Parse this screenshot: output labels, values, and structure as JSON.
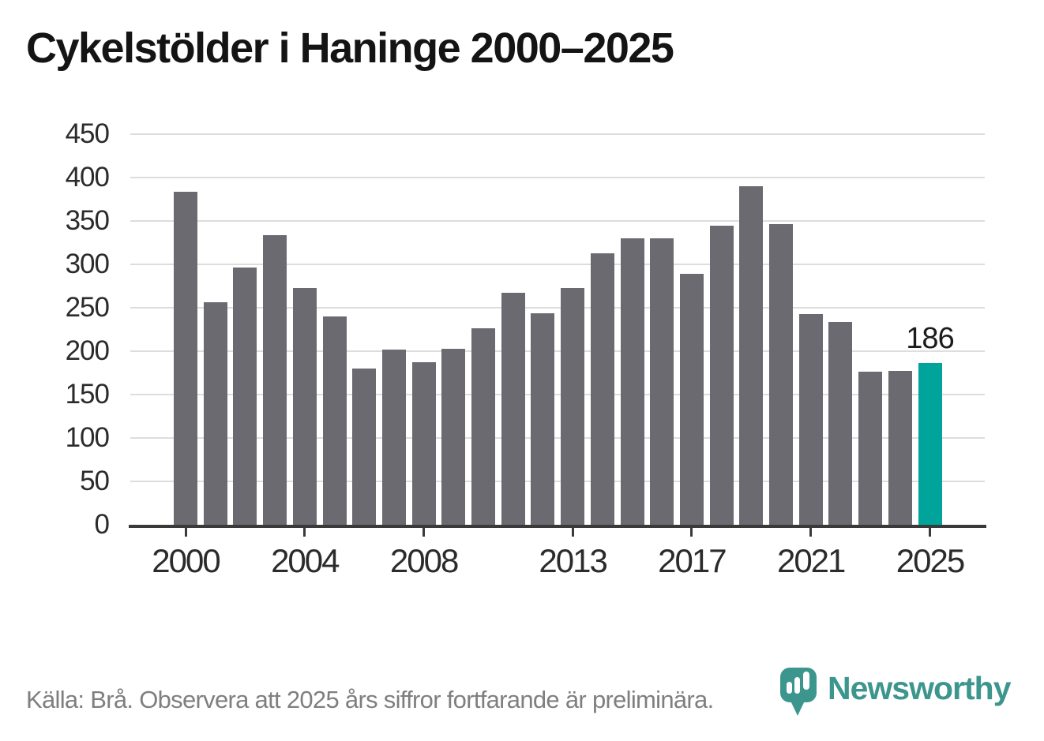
{
  "title": "Cykelstölder i Haninge 2000–2025",
  "footer": {
    "source_text": "Källa: Brå. Observera att 2025 års siffror fortfarande är preliminära.",
    "brand": "Newsworthy"
  },
  "colors": {
    "bar": "#6c6a71",
    "highlight": "#00a49b",
    "brand_teal": "#3c968e",
    "grid": "#dddddd",
    "axis_line": "#3a3a3a",
    "axis_text": "#2b2b2b",
    "title_text": "#141414",
    "source_text": "#7f7f7f",
    "annotation_text": "#1c1c1c"
  },
  "chart_data": {
    "type": "bar",
    "title": "Cykelstölder i Haninge 2000–2025",
    "xlabel": "",
    "ylabel": "",
    "x": [
      2000,
      2001,
      2002,
      2003,
      2004,
      2005,
      2006,
      2007,
      2008,
      2009,
      2010,
      2011,
      2012,
      2013,
      2014,
      2015,
      2016,
      2017,
      2018,
      2019,
      2020,
      2021,
      2022,
      2023,
      2024,
      2025
    ],
    "values": [
      384,
      256,
      296,
      334,
      273,
      240,
      180,
      202,
      187,
      203,
      226,
      267,
      244,
      273,
      313,
      330,
      330,
      289,
      345,
      390,
      346,
      243,
      234,
      176,
      177,
      186
    ],
    "ylim": [
      0,
      450
    ],
    "yticks": [
      0,
      50,
      100,
      150,
      200,
      250,
      300,
      350,
      400,
      450
    ],
    "xticks": [
      2000,
      2004,
      2008,
      2013,
      2017,
      2021,
      2025
    ],
    "grid": true,
    "legend": "none",
    "highlight": {
      "year": 2025,
      "label": "186"
    }
  }
}
